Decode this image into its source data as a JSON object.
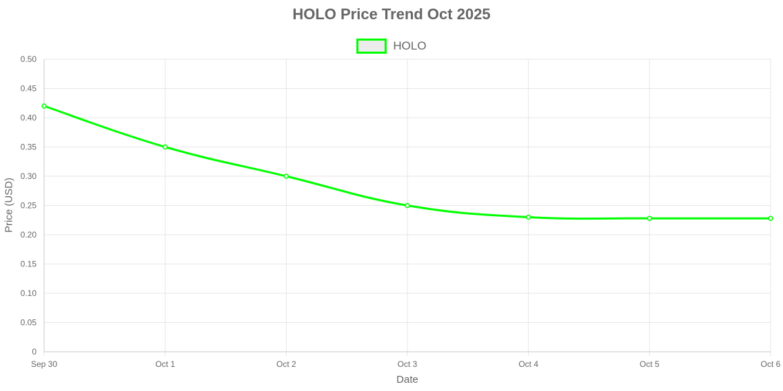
{
  "chart_data": {
    "type": "line",
    "title": "HOLO Price Trend Oct 2025",
    "xlabel": "Date",
    "ylabel": "Price (USD)",
    "categories": [
      "Sep 30",
      "Oct 1",
      "Oct 2",
      "Oct 3",
      "Oct 4",
      "Oct 5",
      "Oct 6"
    ],
    "series": [
      {
        "name": "HOLO",
        "values": [
          0.42,
          0.35,
          0.3,
          0.25,
          0.23,
          0.228,
          0.228
        ],
        "color": "#00ff00"
      }
    ],
    "ylim": [
      0,
      0.5
    ],
    "yticks": [
      "0",
      "0.05",
      "0.10",
      "0.15",
      "0.20",
      "0.25",
      "0.30",
      "0.35",
      "0.40",
      "0.45",
      "0.50"
    ],
    "grid": true,
    "legend_position": "top-center"
  }
}
